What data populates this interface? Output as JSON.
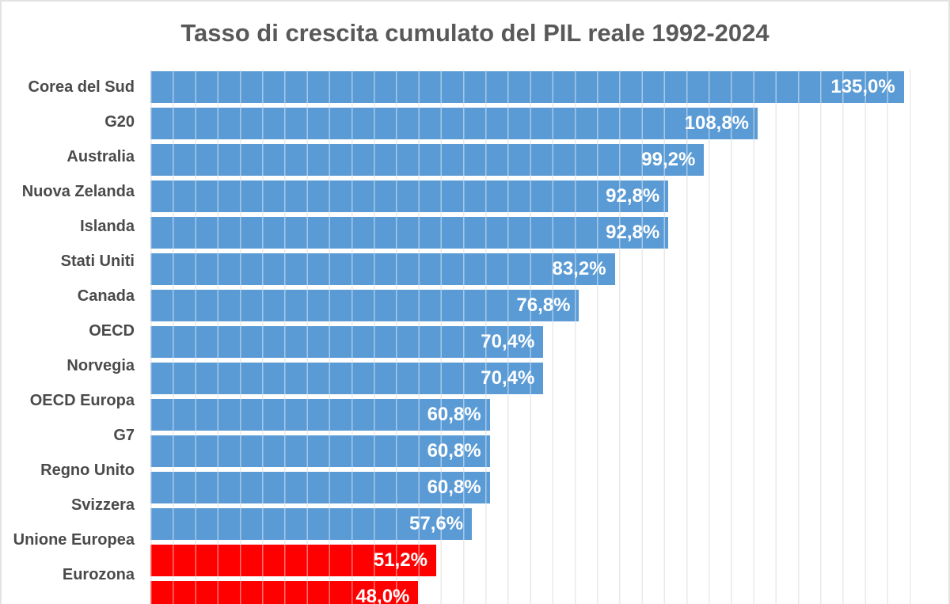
{
  "chart_data": {
    "type": "bar",
    "orientation": "horizontal",
    "title": "Tasso di crescita cumulato del PIL reale 1992-2024",
    "categories": [
      "Corea del Sud",
      "G20",
      "Australia",
      "Nuova Zelanda",
      "Islanda",
      "Stati Uniti",
      "Canada",
      "OECD",
      "Norvegia",
      "OECD Europa",
      "G7",
      "Regno Unito",
      "Svizzera",
      "Unione Europea",
      "Eurozona"
    ],
    "values": [
      135.0,
      108.8,
      99.2,
      92.8,
      92.8,
      83.2,
      76.8,
      70.4,
      70.4,
      60.8,
      60.8,
      60.8,
      57.6,
      51.2,
      48.0
    ],
    "value_labels": [
      "135,0%",
      "108,8%",
      "99,2%",
      "92,8%",
      "92,8%",
      "83,2%",
      "76,8%",
      "70,4%",
      "70,4%",
      "60,8%",
      "60,8%",
      "60,8%",
      "57,6%",
      "51,2%",
      "48,0%"
    ],
    "bar_colors": [
      "default",
      "default",
      "default",
      "default",
      "default",
      "default",
      "default",
      "default",
      "default",
      "default",
      "default",
      "default",
      "default",
      "highlight",
      "highlight"
    ],
    "highlighted_categories": [
      "Unione Europea",
      "Eurozona"
    ],
    "xlim": [
      0,
      140
    ],
    "gridline_step": 4,
    "grid": "vertical-only",
    "legend": "none",
    "value_label_position": "inside-end",
    "colors": {
      "bar_default": "#5B9BD5",
      "bar_highlight": "#FF0000",
      "gridline": "#D9D9D9",
      "title_text": "#595959",
      "category_text": "#4A4A4A",
      "value_text": "#FFFFFF"
    }
  }
}
